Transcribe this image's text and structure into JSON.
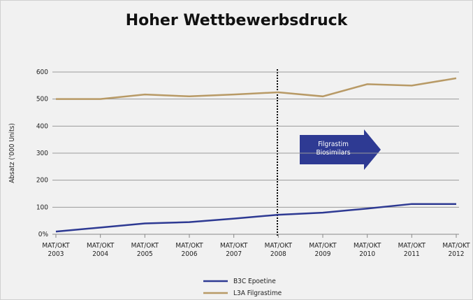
{
  "chart_data": {
    "type": "line",
    "title": "Hoher Wettbewerbsdruck",
    "y_label": "Absatz ('000 Units)",
    "annotation": "Filgrastim Biosimilars",
    "categories": [
      "MAT/OKT 2003",
      "MAT/OKT 2004",
      "MAT/OKT 2005",
      "MAT/OKT 2006",
      "MAT/OKT 2007",
      "MAT/OKT 2008",
      "MAT/OKT 2009",
      "MAT/OKT 2010",
      "MAT/OKT 2011",
      "MAT/OKT 2012"
    ],
    "series": [
      {
        "name": "B3C Epoetine",
        "color": "#2e3a93",
        "values": [
          10,
          25,
          40,
          45,
          58,
          72,
          80,
          95,
          112,
          112
        ]
      },
      {
        "name": "L3A Filgrastime",
        "color": "#b89a66",
        "values": [
          500,
          500,
          517,
          510,
          517,
          525,
          510,
          555,
          550,
          577
        ]
      }
    ],
    "ylim": [
      0,
      600
    ],
    "yticks": [
      {
        "value": 0,
        "label": "0%"
      },
      100,
      200,
      300,
      400,
      500,
      600
    ],
    "grid": true
  }
}
